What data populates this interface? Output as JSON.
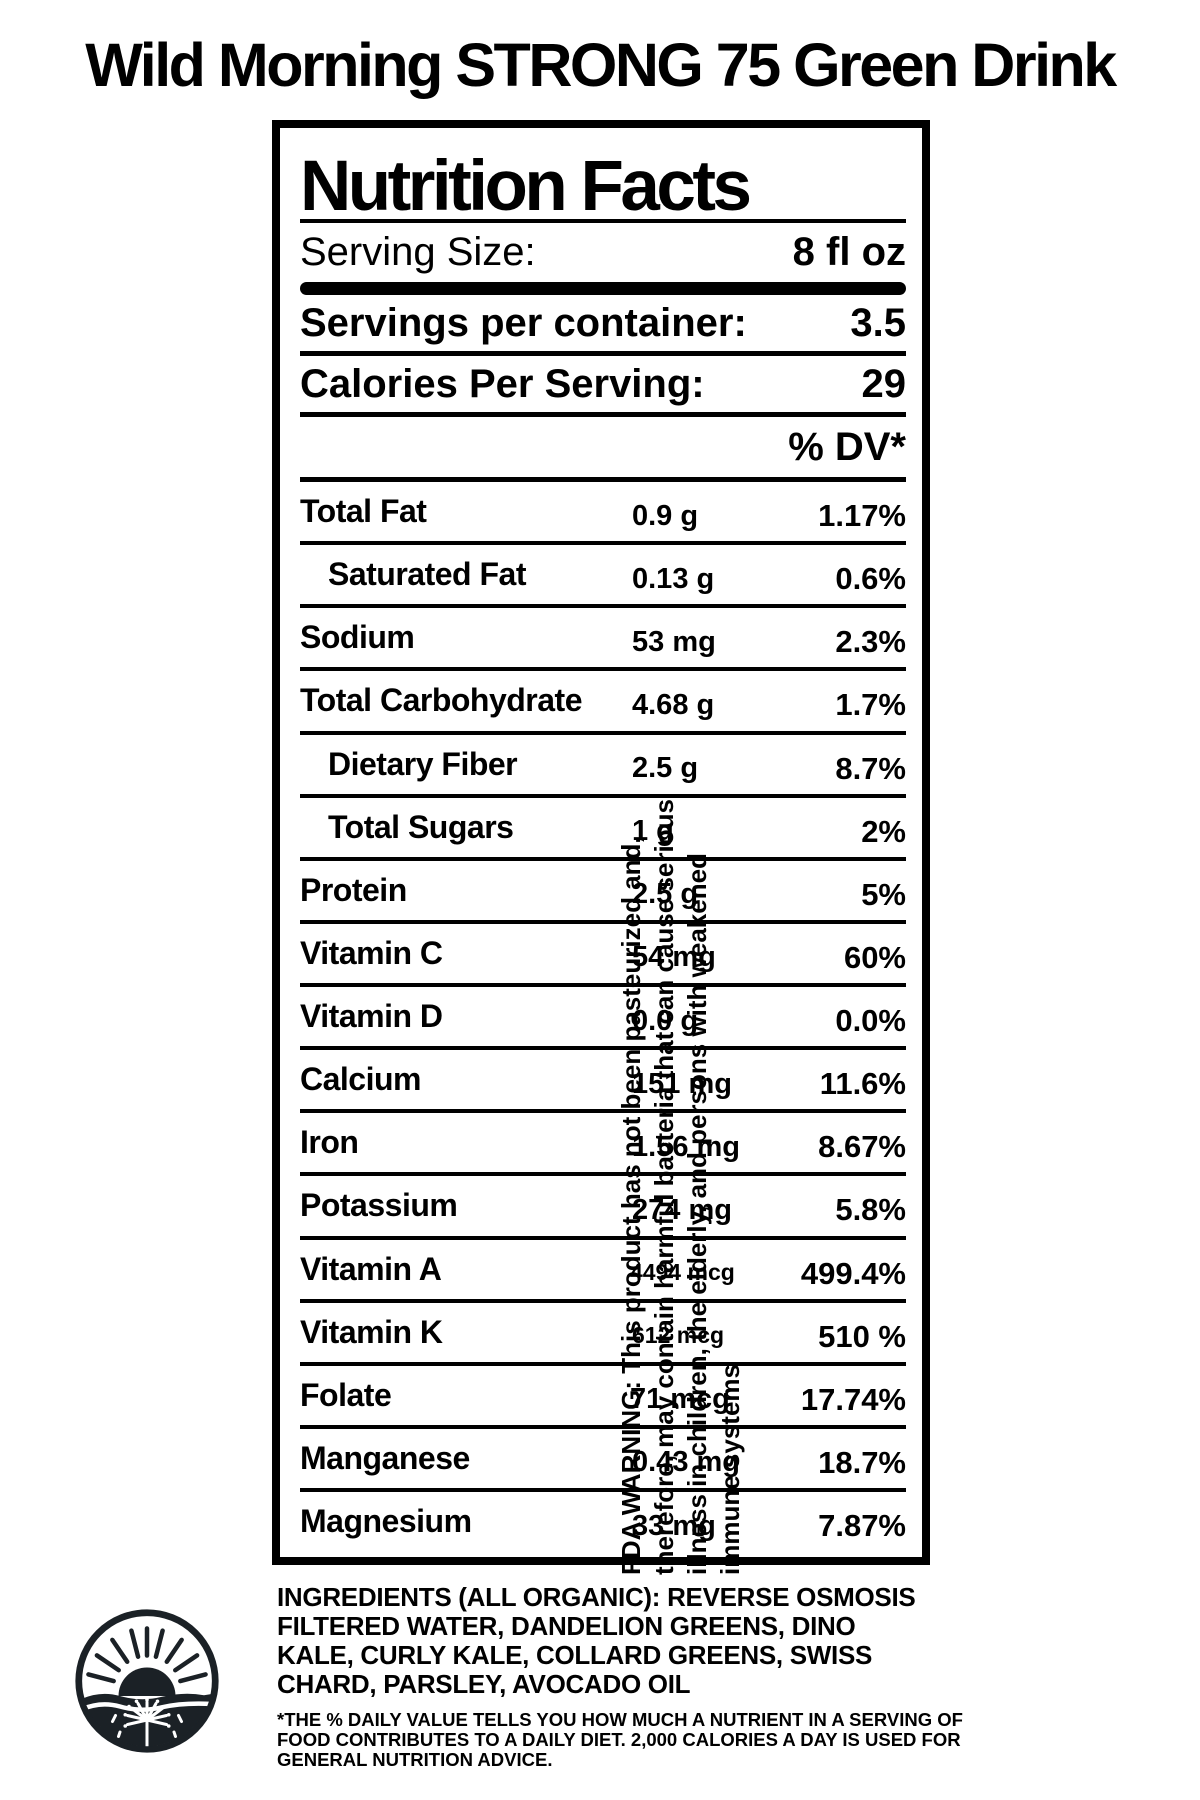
{
  "page_title": "Wild Morning STRONG 75 Green Drink",
  "colors": {
    "text": "#000000",
    "background": "#ffffff",
    "logo_ink": "#1b2126"
  },
  "panel": {
    "title": "Nutrition Facts",
    "serving_size_label": "Serving Size:",
    "serving_size_value": "8 fl oz",
    "servings_label": "Servings per container:",
    "servings_value": "3.5",
    "calories_label": "Calories Per Serving:",
    "calories_value": "29",
    "dv_header": "% DV*",
    "rows": [
      {
        "name": "Total Fat",
        "amount": "0.9 g",
        "dv": "1.17%"
      },
      {
        "name": "Saturated Fat",
        "amount": "0.13 g",
        "dv": "0.6%",
        "indent": true
      },
      {
        "name": "Sodium",
        "amount": "53 mg",
        "dv": "2.3%"
      },
      {
        "name": "Total Carbohydrate",
        "amount": "4.68 g",
        "dv": "1.7%"
      },
      {
        "name": "Dietary Fiber",
        "amount": "2.5 g",
        "dv": "8.7%",
        "indent": true
      },
      {
        "name": "Total Sugars",
        "amount": "1 g",
        "dv": "2%",
        "indent": true
      },
      {
        "name": "Protein",
        "amount": "2.5 g",
        "dv": "5%"
      },
      {
        "name": "Vitamin C",
        "amount": "54 mg",
        "dv": "60%"
      },
      {
        "name": "Vitamin D",
        "amount": "0.0 g",
        "dv": "0.0%"
      },
      {
        "name": "Calcium",
        "amount": "151 mg",
        "dv": "11.6%"
      },
      {
        "name": "Iron",
        "amount": "1.56 mg",
        "dv": "8.67%"
      },
      {
        "name": "Potassium",
        "amount": "274 mg",
        "dv": "5.8%"
      },
      {
        "name": "Vitamin A",
        "amount": "4494 mcg",
        "dv": "499.4%",
        "amount_small": true
      },
      {
        "name": "Vitamin K",
        "amount": "612 mcg",
        "dv": "510 %",
        "amount_small": true
      },
      {
        "name": "Folate",
        "amount": "71 mcg",
        "dv": "17.74%"
      },
      {
        "name": "Manganese",
        "amount": "0.43 mg",
        "dv": "18.7%"
      },
      {
        "name": "Magnesium",
        "amount": "33 mg",
        "dv": "7.87%"
      }
    ]
  },
  "fda_warning": {
    "lines": [
      "FDA WARNING: This product has not been pasteurized and,",
      "therefore, may contain harmful bacteria that can cause serious",
      "illness in children, the elderly, and persons with weakened",
      "immune systems"
    ]
  },
  "ingredients": "INGREDIENTS (ALL ORGANIC): REVERSE OSMOSIS FILTERED WATER, DANDELION GREENS, DINO KALE, CURLY KALE, COLLARD GREENS, SWISS CHARD, PARSLEY, AVOCADO OIL",
  "footnote": "*THE % DAILY VALUE TELLS YOU HOW MUCH A NUTRIENT IN A SERVING OF FOOD CONTRIBUTES TO A DAILY DIET. 2,000 CALORIES A DAY IS USED FOR GENERAL NUTRITION ADVICE.",
  "logo": {
    "icon": "sunrise-dandelion-logo"
  }
}
